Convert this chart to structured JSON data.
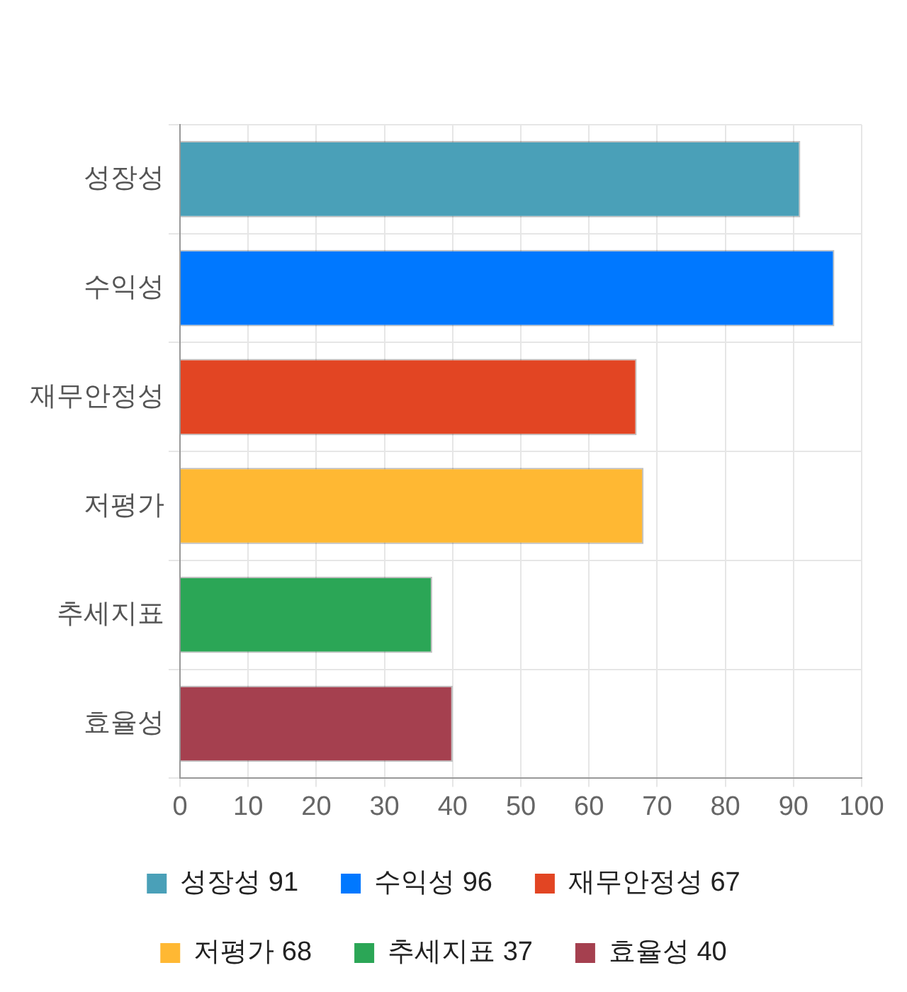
{
  "chart_data": {
    "type": "bar",
    "orientation": "horizontal",
    "stacked": true,
    "categories": [
      "성장성",
      "수익성",
      "재무안정성",
      "저평가",
      "추세지표",
      "효율성"
    ],
    "series": [
      {
        "name": "성장성 91",
        "color": "#4aa0b8",
        "values": [
          91,
          null,
          null,
          null,
          null,
          null
        ]
      },
      {
        "name": "수익성 96",
        "color": "#0078ff",
        "values": [
          null,
          96,
          null,
          null,
          null,
          null
        ]
      },
      {
        "name": "재무안정성 67",
        "color": "#e24523",
        "values": [
          null,
          null,
          67,
          null,
          null,
          null
        ]
      },
      {
        "name": "저평가 68",
        "color": "#ffb833",
        "values": [
          null,
          null,
          null,
          68,
          null,
          null
        ]
      },
      {
        "name": "추세지표 37",
        "color": "#2ba656",
        "values": [
          null,
          null,
          null,
          null,
          37,
          null
        ]
      },
      {
        "name": "효율성 40",
        "color": "#a5404f",
        "values": [
          null,
          null,
          null,
          null,
          null,
          40
        ]
      }
    ],
    "xlim": [
      0,
      100
    ],
    "xticks": [
      0,
      10,
      20,
      30,
      40,
      50,
      60,
      70,
      80,
      90,
      100
    ],
    "grid": true,
    "legend": "bottom"
  }
}
